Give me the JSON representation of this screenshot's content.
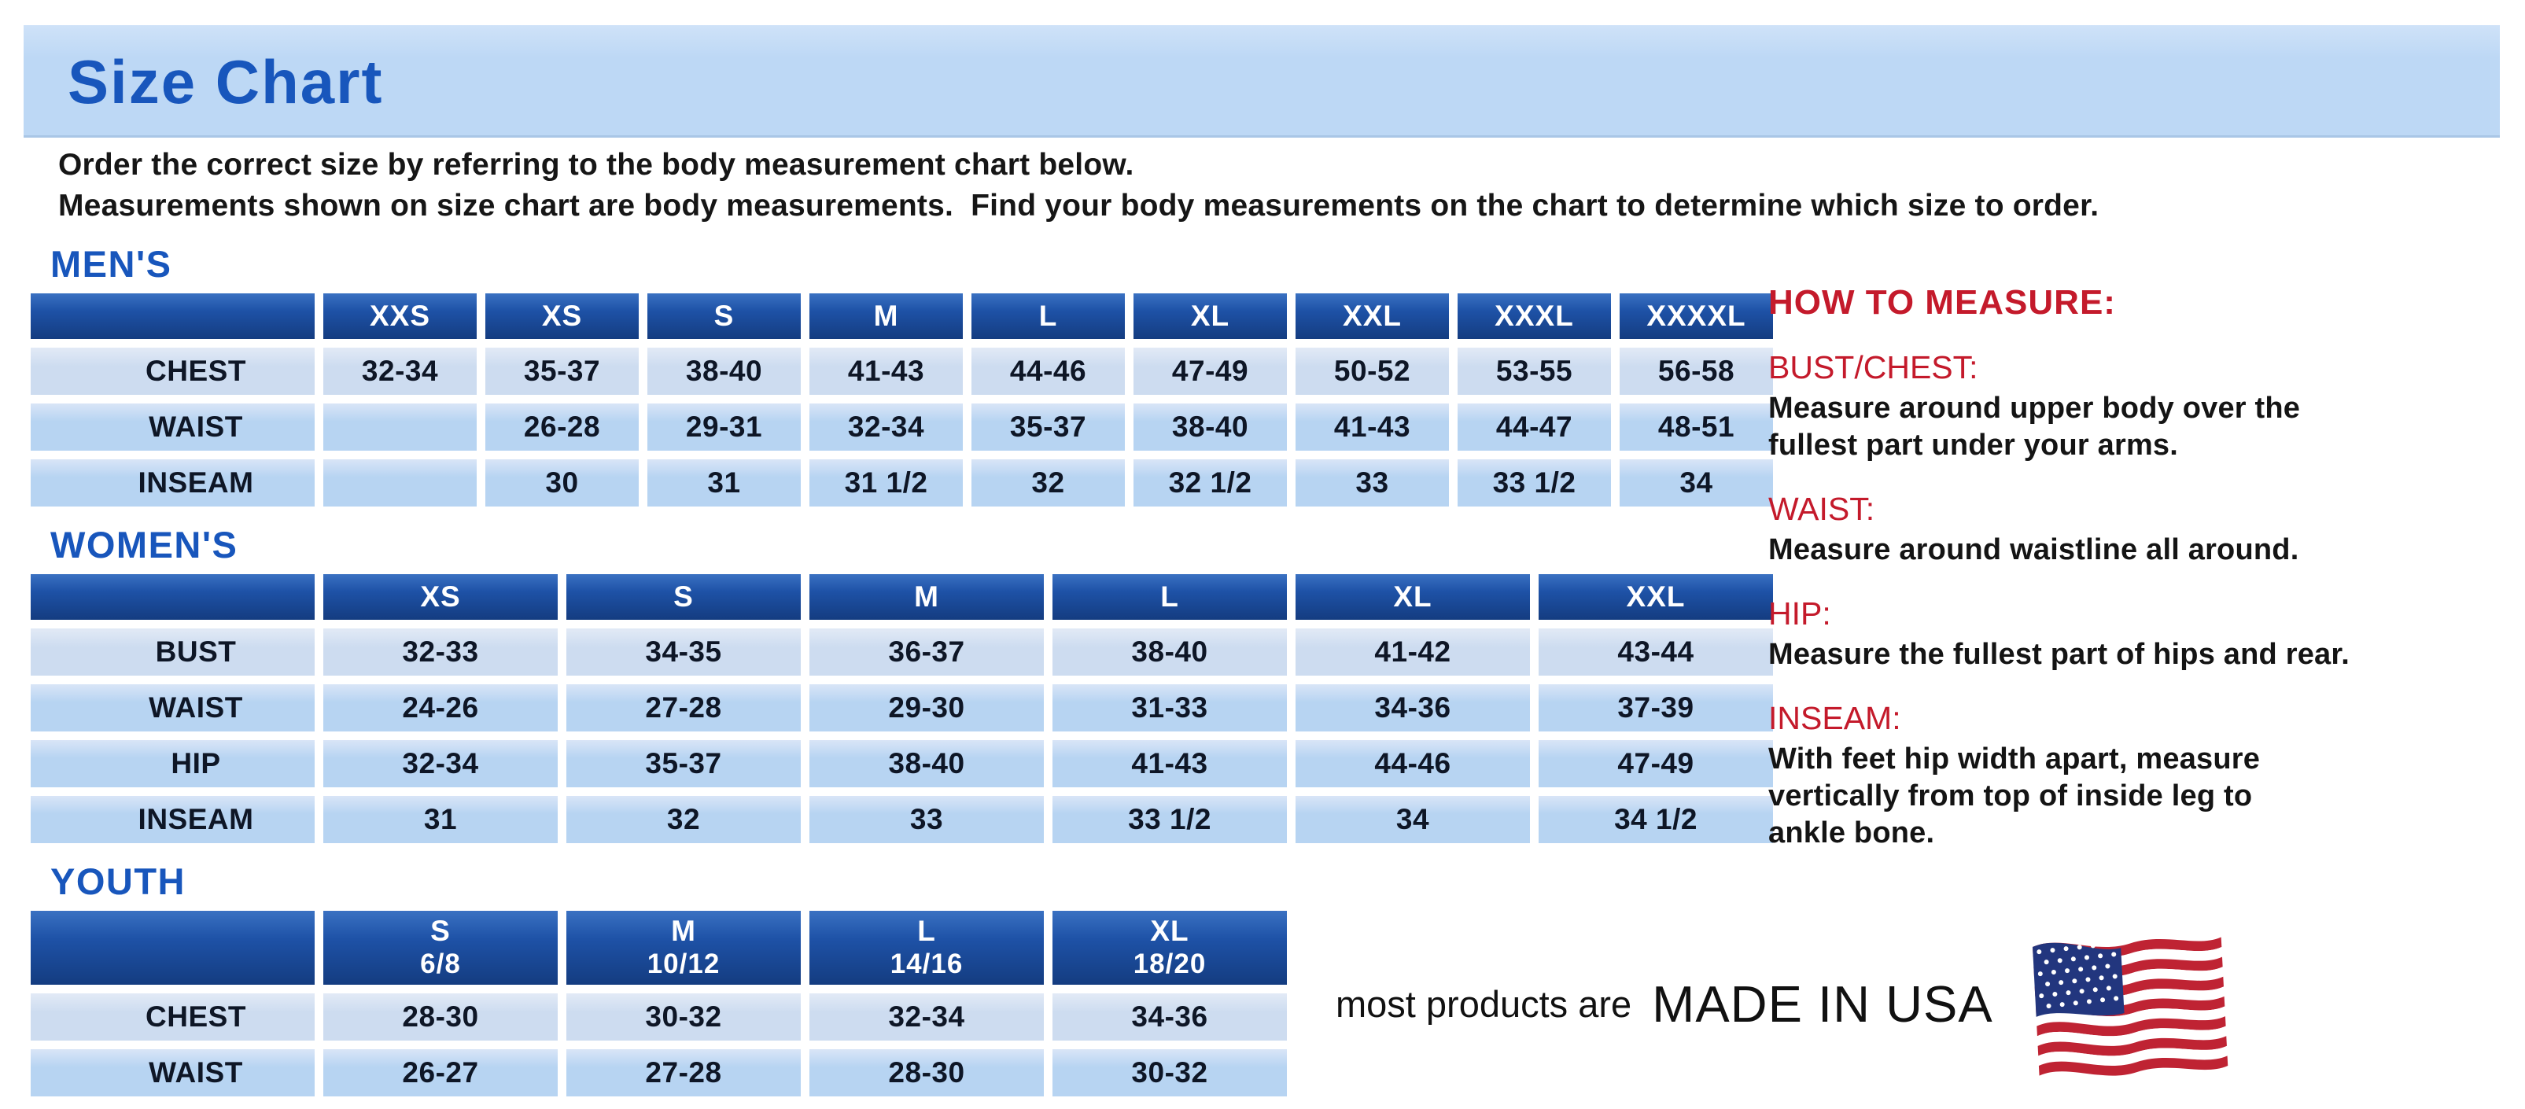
{
  "title": "Size Chart",
  "intro": {
    "line1": "Order the correct size by referring to the body measurement chart below.",
    "line2": "Measurements shown on size chart are body measurements.  Find your body measurements on the chart to determine which size to order."
  },
  "colors": {
    "banner_blue": "#bdd8f5",
    "title_blue": "#1856bc",
    "header_blue": "#1e52a7",
    "header_blue_dark": "#143c80",
    "cell_blue": "#b7d4f2",
    "cell_blue_light": "#cddcf0",
    "heading_red": "#c41a2b",
    "flag_canton_blue": "#22367e",
    "flag_stripe_red": "#bf2333"
  },
  "tables": {
    "mens": {
      "heading": "MEN'S",
      "columns": [
        "XXS",
        "XS",
        "S",
        "M",
        "L",
        "XL",
        "XXL",
        "XXXL",
        "XXXXL"
      ],
      "rows": [
        {
          "label": "CHEST",
          "values": [
            "32-34",
            "35-37",
            "38-40",
            "41-43",
            "44-46",
            "47-49",
            "50-52",
            "53-55",
            "56-58"
          ]
        },
        {
          "label": "WAIST",
          "values": [
            "",
            "26-28",
            "29-31",
            "32-34",
            "35-37",
            "38-40",
            "41-43",
            "44-47",
            "48-51"
          ]
        },
        {
          "label": "INSEAM",
          "values": [
            "",
            "30",
            "31",
            "31 1/2",
            "32",
            "32 1/2",
            "33",
            "33 1/2",
            "34"
          ]
        }
      ]
    },
    "womens": {
      "heading": "WOMEN'S",
      "columns": [
        "XS",
        "S",
        "M",
        "L",
        "XL",
        "XXL"
      ],
      "rows": [
        {
          "label": "BUST",
          "values": [
            "32-33",
            "34-35",
            "36-37",
            "38-40",
            "41-42",
            "43-44"
          ]
        },
        {
          "label": "WAIST",
          "values": [
            "24-26",
            "27-28",
            "29-30",
            "31-33",
            "34-36",
            "37-39"
          ]
        },
        {
          "label": "HIP",
          "values": [
            "32-34",
            "35-37",
            "38-40",
            "41-43",
            "44-46",
            "47-49"
          ]
        },
        {
          "label": "INSEAM",
          "values": [
            "31",
            "32",
            "33",
            "33 1/2",
            "34",
            "34 1/2"
          ]
        }
      ]
    },
    "youth": {
      "heading": "YOUTH",
      "columns": [
        {
          "size": "S",
          "range": "6/8"
        },
        {
          "size": "M",
          "range": "10/12"
        },
        {
          "size": "L",
          "range": "14/16"
        },
        {
          "size": "XL",
          "range": "18/20"
        }
      ],
      "rows": [
        {
          "label": "CHEST",
          "values": [
            "28-30",
            "30-32",
            "32-34",
            "34-36"
          ]
        },
        {
          "label": "WAIST",
          "values": [
            "26-27",
            "27-28",
            "28-30",
            "30-32"
          ]
        }
      ]
    }
  },
  "how_to_measure": {
    "heading": "HOW TO MEASURE:",
    "items": [
      {
        "label": "BUST/CHEST:",
        "text": "Measure around upper body over the\nfullest part under your arms."
      },
      {
        "label": "WAIST:",
        "text": "Measure around waistline all around."
      },
      {
        "label": "HIP:",
        "text": "Measure the fullest part of hips and rear."
      },
      {
        "label": "INSEAM:",
        "text": "With feet hip width apart, measure\nvertically from top of inside leg to\nankle bone."
      }
    ]
  },
  "footer": {
    "prefix": "most products are",
    "made_in": "MADE IN USA",
    "flag_icon": "us-flag-icon"
  }
}
